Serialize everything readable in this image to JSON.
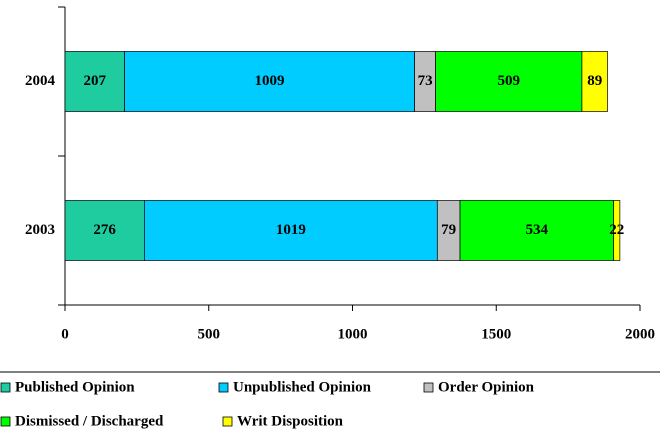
{
  "chart_data": {
    "type": "stacked_bar_horizontal",
    "categories": [
      "2004",
      "2003"
    ],
    "series": [
      {
        "name": "Published Opinion",
        "color": "#1fcc9f",
        "values": [
          207,
          276
        ]
      },
      {
        "name": "Unpublished Opinion",
        "color": "#00ccff",
        "values": [
          1009,
          1019
        ]
      },
      {
        "name": "Order Opinion",
        "color": "#c0c0c0",
        "values": [
          73,
          79
        ]
      },
      {
        "name": "Dismissed / Discharged",
        "color": "#00ff00",
        "values": [
          509,
          534
        ]
      },
      {
        "name": "Writ Disposition",
        "color": "#ffff00",
        "values": [
          89,
          22
        ]
      }
    ],
    "xlim": [
      0,
      2000
    ],
    "xticks": [
      0,
      500,
      1000,
      1500,
      2000
    ]
  }
}
